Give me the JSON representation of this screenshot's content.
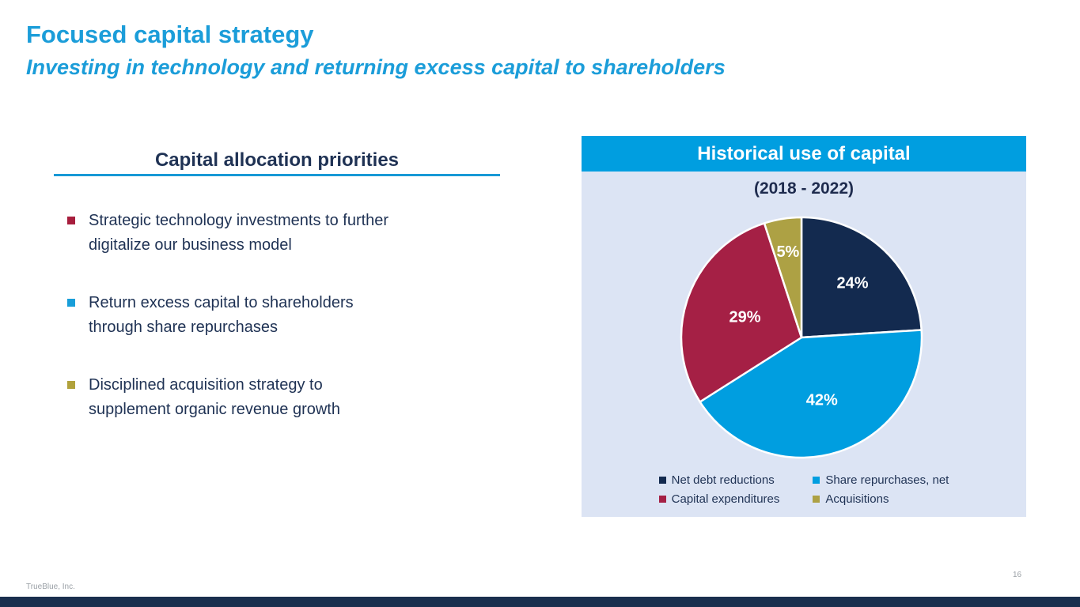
{
  "slide": {
    "title": "Focused capital strategy",
    "subtitle": "Investing in technology and returning excess capital to shareholders",
    "footer_company": "TrueBlue, Inc.",
    "page_number": "16"
  },
  "left_panel": {
    "heading": "Capital allocation priorities",
    "bullets": [
      {
        "marker_color": "#A71E3D",
        "lines": [
          "Strategic technology investments to further",
          "digitalize our business model"
        ],
        "text": "Strategic technology investments to further digitalize our business model"
      },
      {
        "marker_color": "#189ED9",
        "lines": [
          "Return excess capital to shareholders",
          "through share repurchases"
        ],
        "text": "Return excess capital to shareholders through share repurchases"
      },
      {
        "marker_color": "#B1A23C",
        "lines": [
          "Disciplined acquisition strategy to",
          "supplement organic revenue growth"
        ],
        "text": "Disciplined acquisition strategy to supplement organic revenue growth"
      }
    ]
  },
  "chart_panel": {
    "header": "Historical use of capital",
    "subtitle": "(2018 - 2022)"
  },
  "chart_data": {
    "type": "pie",
    "title": "Historical use of capital",
    "subtitle": "(2018 - 2022)",
    "unit": "%",
    "start_angle_deg": 0,
    "direction": "clockwise",
    "legend_position": "bottom",
    "legend_columns": 2,
    "slices": [
      {
        "label": "Net debt reductions",
        "value": 24,
        "data_label": "24%",
        "color": "#132A4F",
        "label_r": 0.62
      },
      {
        "label": "Share repurchases, net",
        "value": 42,
        "data_label": "42%",
        "color": "#009EE0",
        "label_r": 0.55
      },
      {
        "label": "Capital expenditures",
        "value": 29,
        "data_label": "29%",
        "color": "#A52045",
        "label_r": 0.5
      },
      {
        "label": "Acquisitions",
        "value": 5,
        "data_label": "5%",
        "color": "#ADA144",
        "label_r": 0.72
      }
    ]
  },
  "colors": {
    "title_blue": "#1B9DD9",
    "header_bar_blue": "#009EE0",
    "panel_background": "#DCE4F4",
    "body_navy": "#1F3254",
    "underline_blue": "#1899D6",
    "bottom_bar_navy": "#1A2F4E",
    "footer_gray": "#9aa0a6"
  }
}
